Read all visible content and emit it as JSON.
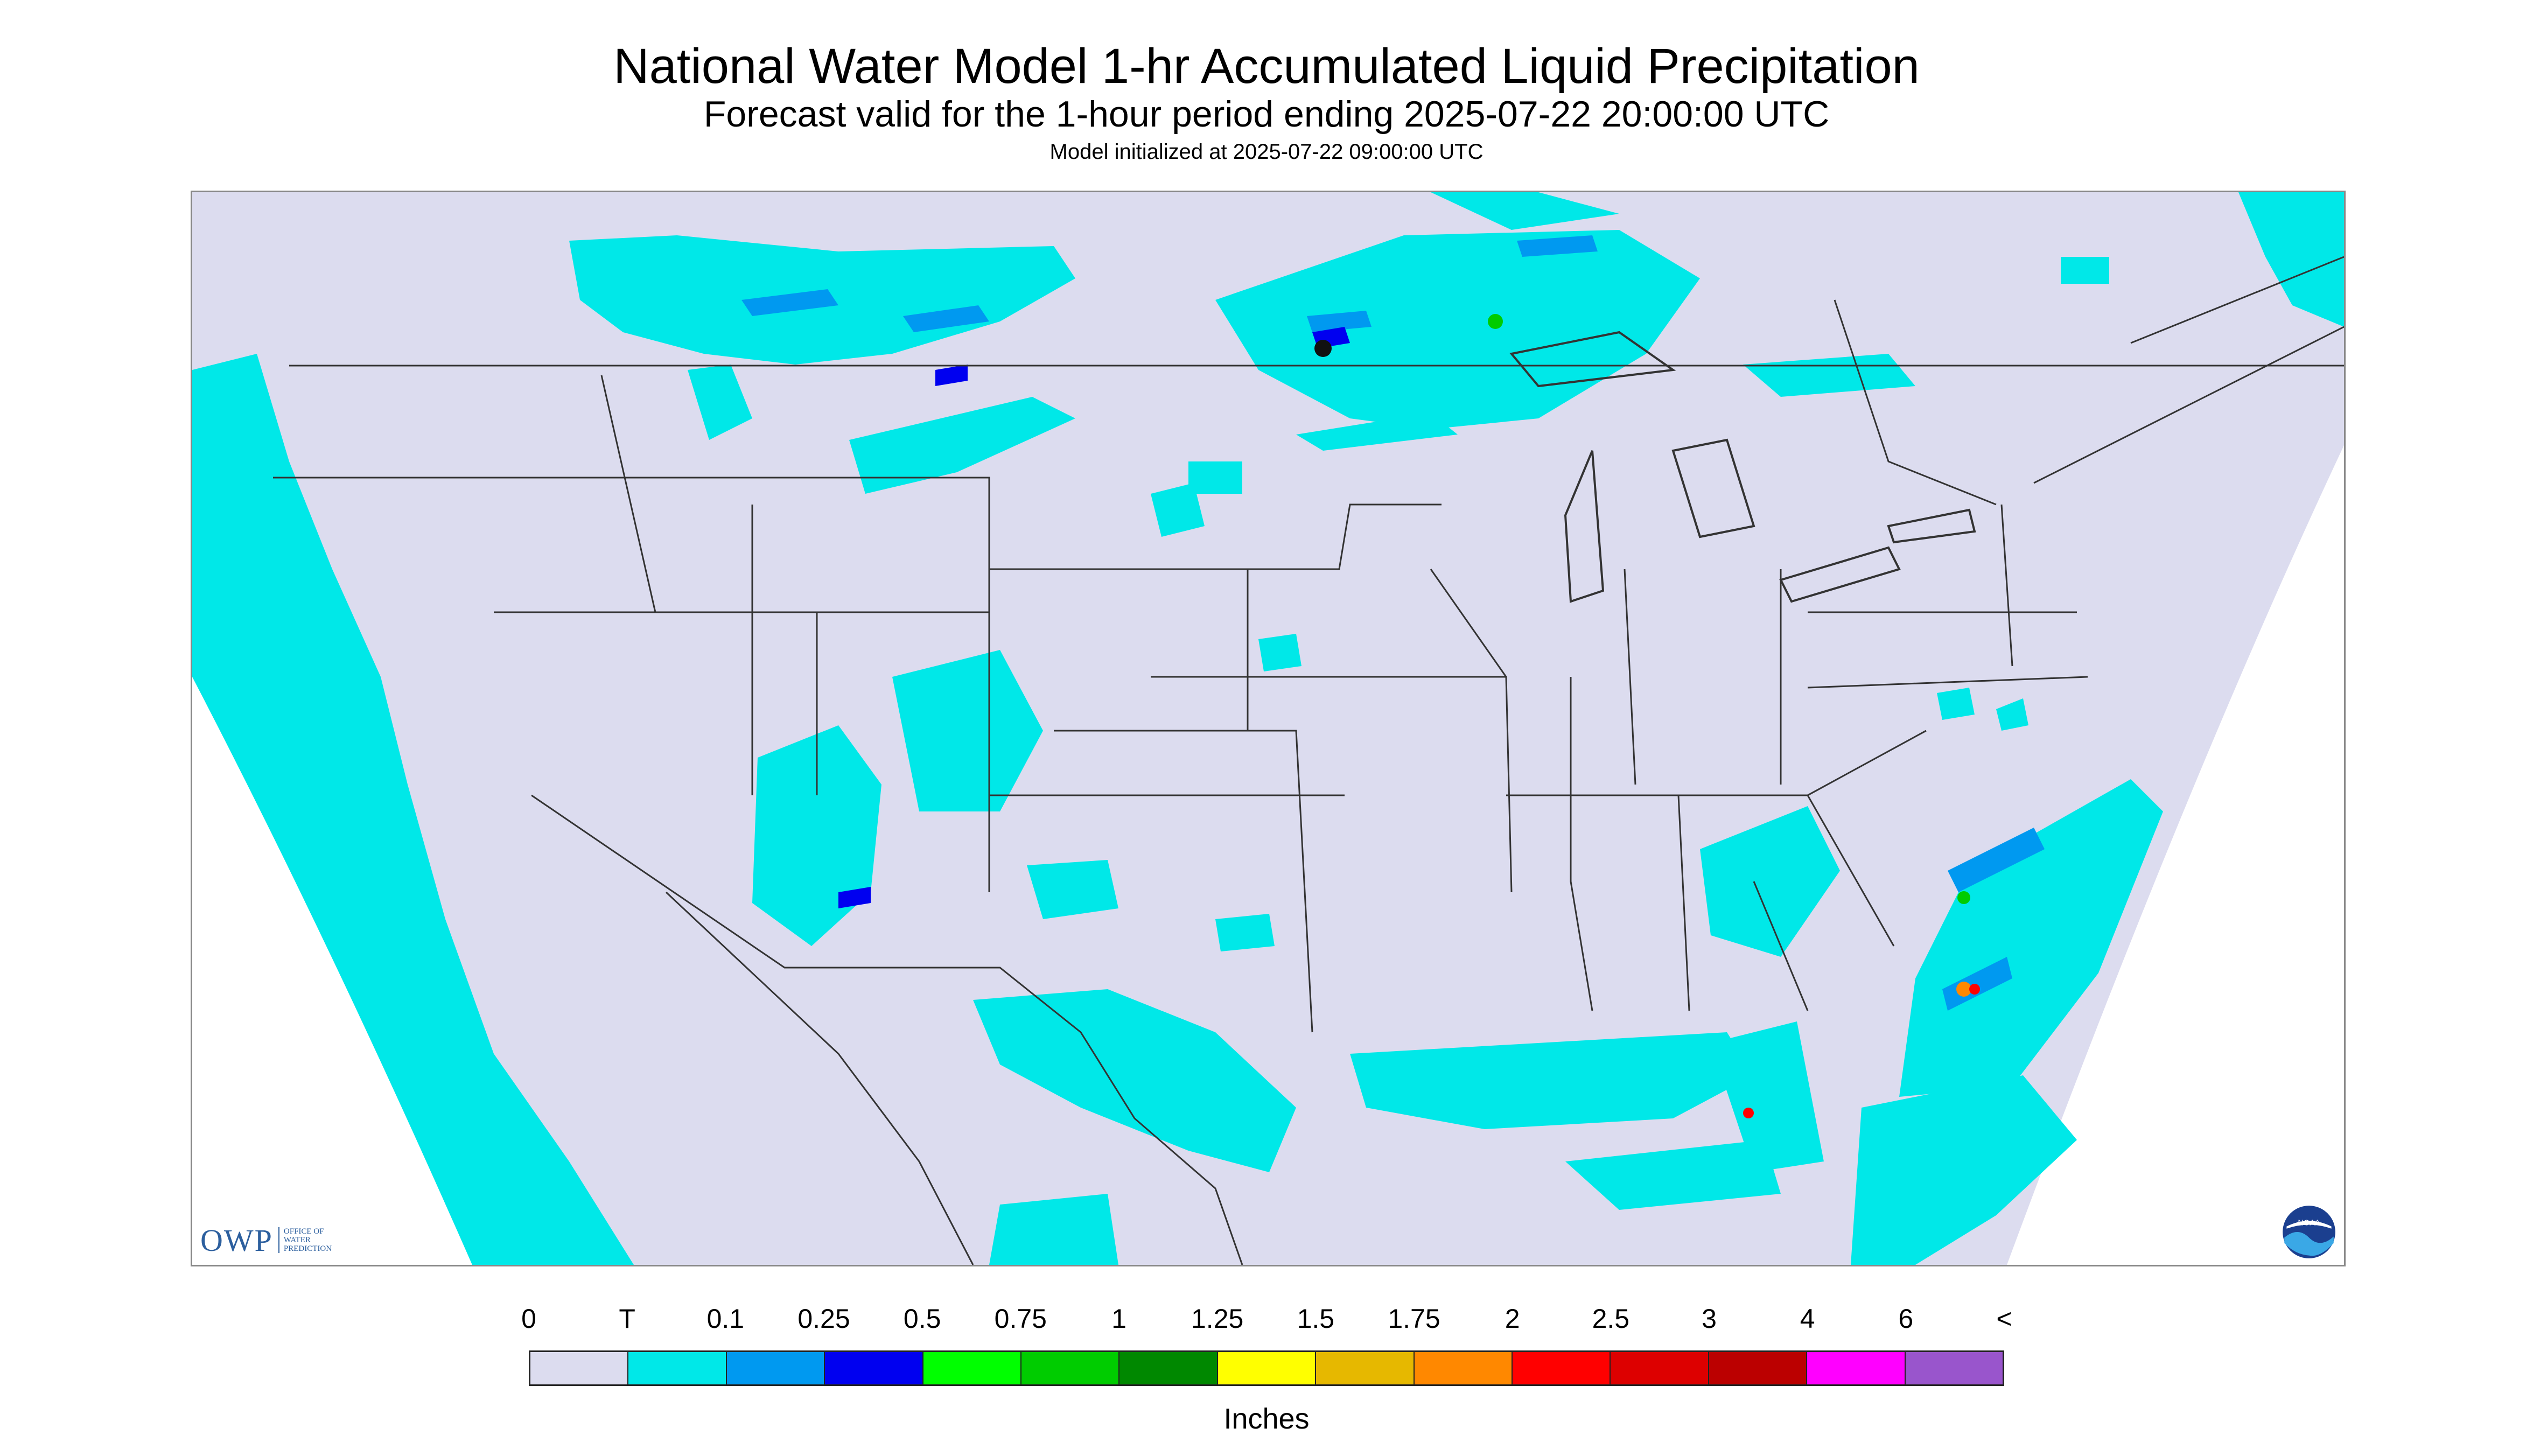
{
  "header": {
    "title": "National Water Model 1-hr Accumulated Liquid Precipitation",
    "subtitle": "Forecast valid for the 1-hour period ending 2025-07-22 20:00:00 UTC",
    "init": "Model initialized at 2025-07-22 09:00:00 UTC"
  },
  "legend": {
    "units": "Inches",
    "labels": [
      "0",
      "T",
      "0.1",
      "0.25",
      "0.5",
      "0.75",
      "1",
      "1.25",
      "1.5",
      "1.75",
      "2",
      "2.5",
      "3",
      "4",
      "6",
      "<"
    ],
    "colors": [
      "#dcdcef",
      "#00e8e8",
      "#0099f0",
      "#0000f0",
      "#00ff00",
      "#00cc00",
      "#008800",
      "#ffff00",
      "#e6b800",
      "#ff8800",
      "#ff0000",
      "#dd0000",
      "#bb0000",
      "#ff00ff",
      "#9955cc"
    ]
  },
  "logos": {
    "owp_text": "OWP",
    "owp_subtext": [
      "OFFICE OF",
      "WATER",
      "PREDICTION"
    ],
    "noaa_text": "NOAA"
  },
  "map": {
    "domain_color": "#dcdcef",
    "outside_color": "#ffffff",
    "boundary_color": "#333333"
  }
}
